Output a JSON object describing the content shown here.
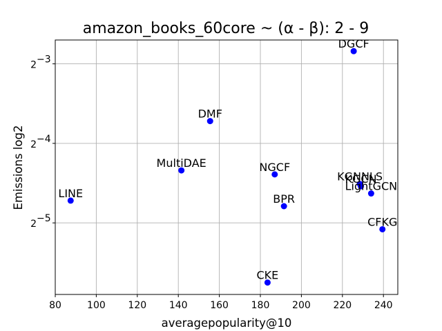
{
  "chart_data": {
    "type": "scatter",
    "title": "amazon_books_60core ~ (α - β): 2 - 9",
    "xlabel": "averagepopularity@10",
    "ylabel": "Emissions log2",
    "xlim": [
      80,
      247
    ],
    "ylim_log2": [
      -5.9,
      -2.7
    ],
    "x_ticks": [
      80,
      100,
      120,
      140,
      160,
      180,
      200,
      220,
      240
    ],
    "y_ticks": [
      {
        "exp": -3,
        "label": "2",
        "sup": "−3"
      },
      {
        "exp": -4,
        "label": "2",
        "sup": "−4"
      },
      {
        "exp": -5,
        "label": "2",
        "sup": "−5"
      }
    ],
    "grid": true,
    "marker_color": "#0000ff",
    "points": [
      {
        "label": "DGCF",
        "x": 225.5,
        "log2y": -2.84
      },
      {
        "label": "DMF",
        "x": 155.5,
        "log2y": -3.72
      },
      {
        "label": "MultiDAE",
        "x": 141.5,
        "log2y": -4.34
      },
      {
        "label": "NGCF",
        "x": 187.0,
        "log2y": -4.39
      },
      {
        "label": "KGNNLS",
        "x": 228.5,
        "log2y": -4.51
      },
      {
        "label": "KGCN",
        "x": 229.0,
        "log2y": -4.54
      },
      {
        "label": "LightGCN",
        "x": 234.0,
        "log2y": -4.63
      },
      {
        "label": "LINE",
        "x": 87.5,
        "log2y": -4.72
      },
      {
        "label": "BPR",
        "x": 191.5,
        "log2y": -4.79
      },
      {
        "label": "CFKG",
        "x": 239.5,
        "log2y": -5.08
      },
      {
        "label": "CKE",
        "x": 183.5,
        "log2y": -5.75
      }
    ]
  }
}
